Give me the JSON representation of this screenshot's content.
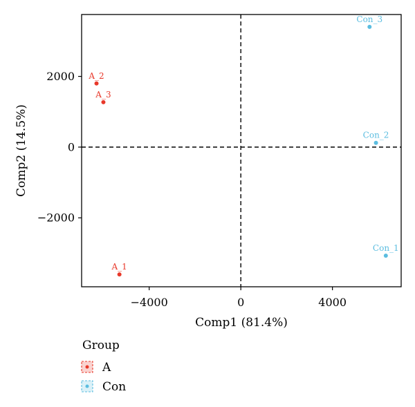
{
  "chart_data": {
    "type": "scatter",
    "title": "",
    "xlabel": "Comp1 (81.4%)",
    "ylabel": "Comp2 (14.5%)",
    "xlim": [
      -6950,
      7000
    ],
    "ylim": [
      -3950,
      3750
    ],
    "xticks": [
      -4000,
      0,
      4000
    ],
    "xtick_labels": [
      "−4000",
      "0",
      "4000"
    ],
    "yticks": [
      -2000,
      0,
      2000
    ],
    "ytick_labels": [
      "−2000",
      "0",
      "2000"
    ],
    "grid": false,
    "reference_lines": {
      "x": 0,
      "y": 0,
      "style": "dashed"
    },
    "legend": {
      "title": "Group",
      "placement": "bottom-left"
    },
    "series": [
      {
        "name": "A",
        "color": "#e8382a",
        "points": [
          {
            "label": "A_1",
            "x": -5300,
            "y": -3600
          },
          {
            "label": "A_2",
            "x": -6300,
            "y": 1800
          },
          {
            "label": "A_3",
            "x": -6000,
            "y": 1270
          }
        ]
      },
      {
        "name": "Con",
        "color": "#5bbde0",
        "points": [
          {
            "label": "Con_1",
            "x": 6330,
            "y": -3070
          },
          {
            "label": "Con_2",
            "x": 5900,
            "y": 120
          },
          {
            "label": "Con_3",
            "x": 5620,
            "y": 3400
          }
        ]
      }
    ]
  }
}
